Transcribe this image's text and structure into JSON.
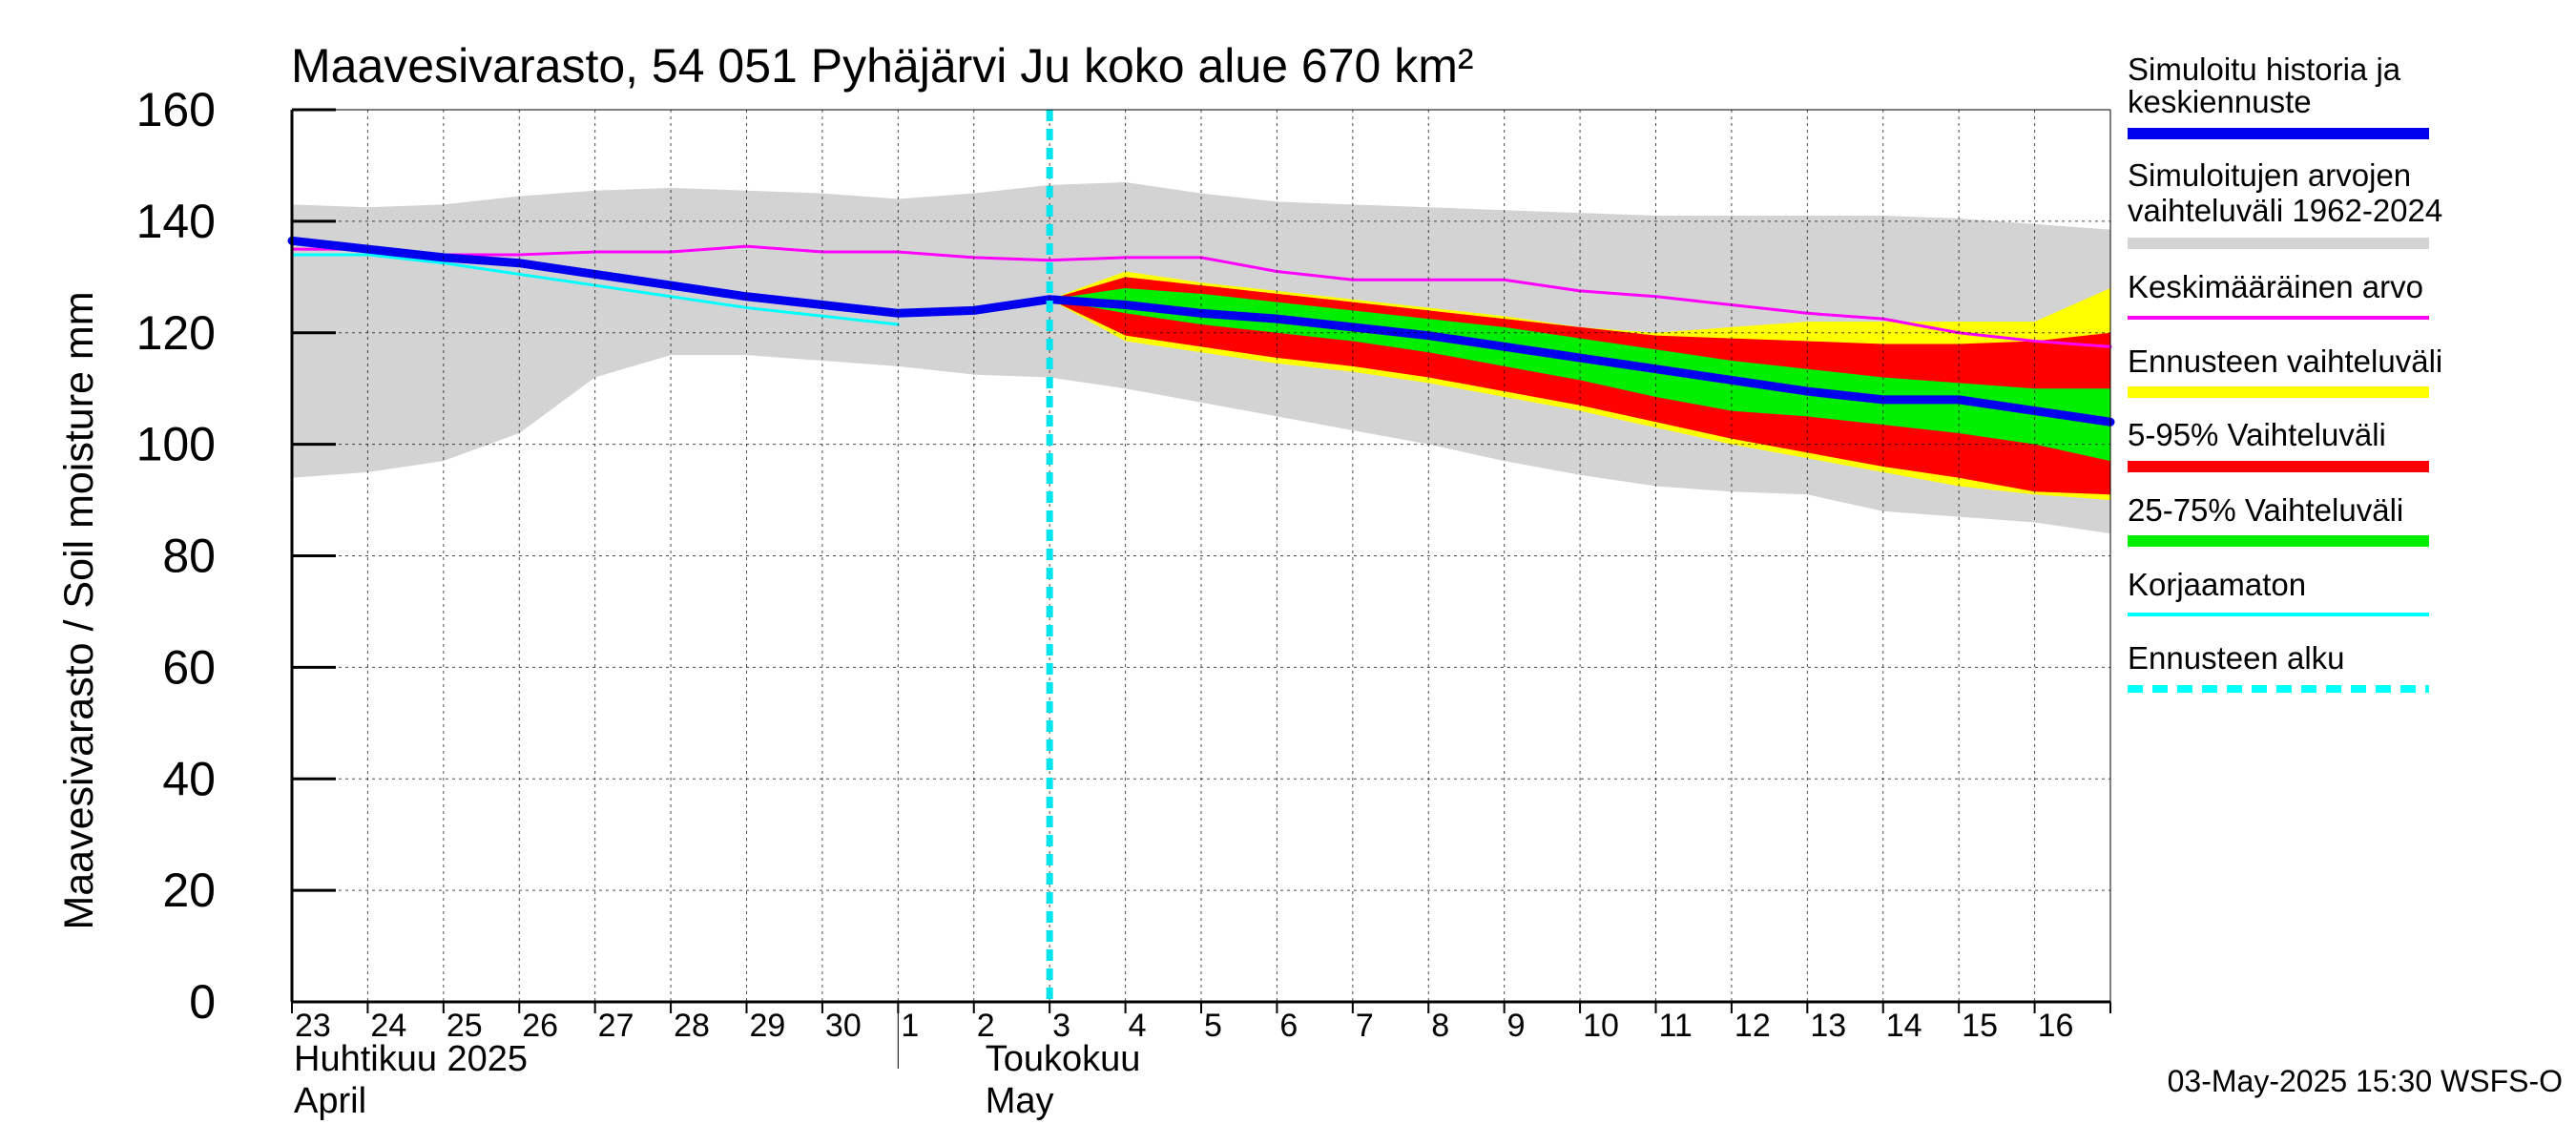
{
  "chart_data": {
    "type": "area",
    "title": "Maavesivarasto, 54 051 Pyhäjärvi Ju koko alue 670 km²",
    "ylabel": "Maavesivarasto / Soil moisture   mm",
    "ylim": [
      0,
      160
    ],
    "yticks": [
      0,
      20,
      40,
      60,
      80,
      100,
      120,
      140,
      160
    ],
    "xlim": [
      0,
      24
    ],
    "day_labels": [
      "23",
      "24",
      "25",
      "26",
      "27",
      "28",
      "29",
      "30",
      "1",
      "2",
      "3",
      "4",
      "5",
      "6",
      "7",
      "8",
      "9",
      "10",
      "11",
      "12",
      "13",
      "14",
      "15",
      "16"
    ],
    "month_labels": [
      {
        "line1": "Huhtikuu  2025",
        "line2": "April",
        "day_index": 0
      },
      {
        "line1": "Toukokuu",
        "line2": "May",
        "day_index": 9
      }
    ],
    "month_divider_day_index": 8,
    "forecast_start_x": 10,
    "timestamp": "03-May-2025 15:30 WSFS-O",
    "series": [
      {
        "name": "Simuloitujen arvojen vaihteluväli 1962-2024",
        "kind": "band",
        "color": "#d3d3d3",
        "x": [
          0,
          1,
          2,
          3,
          4,
          5,
          6,
          7,
          8,
          9,
          10,
          11,
          12,
          13,
          14,
          15,
          16,
          17,
          18,
          19,
          20,
          21,
          22,
          23,
          24
        ],
        "upper": [
          143,
          142.5,
          143,
          144.5,
          145.5,
          146,
          145.5,
          145,
          144,
          145,
          146.5,
          147,
          145,
          143.5,
          143,
          142.5,
          142,
          141.5,
          141,
          141,
          141,
          141,
          140.5,
          139.5,
          138.5
        ],
        "lower": [
          94,
          95,
          97,
          102,
          112,
          116,
          116,
          115,
          114,
          112.5,
          112,
          110,
          107.5,
          105,
          102.5,
          100,
          97,
          94.5,
          92.5,
          91.5,
          91,
          88,
          87,
          86,
          84
        ]
      },
      {
        "name": "Ennusteen vaihteluväli",
        "kind": "band",
        "color": "#ffff00",
        "x": [
          10,
          11,
          12,
          13,
          14,
          15,
          16,
          17,
          18,
          19,
          20,
          21,
          22,
          23,
          24
        ],
        "upper": [
          126,
          131,
          129,
          127.5,
          126,
          124.5,
          123,
          121,
          120,
          121,
          122,
          122,
          122,
          122,
          128
        ],
        "lower": [
          126,
          118.5,
          116.5,
          114.5,
          113,
          111,
          108.5,
          106,
          103,
          100,
          97.5,
          95,
          92.5,
          91,
          90
        ]
      },
      {
        "name": "5-95% Vaihteluväli",
        "kind": "band",
        "color": "#ff0000",
        "x": [
          10,
          11,
          12,
          13,
          14,
          15,
          16,
          17,
          18,
          19,
          20,
          21,
          22,
          23,
          24
        ],
        "upper": [
          126,
          130,
          128.5,
          127,
          125.5,
          124,
          122.5,
          121,
          119.5,
          119,
          118.5,
          118,
          118,
          118.5,
          120
        ],
        "lower": [
          126,
          119.5,
          117.5,
          115.5,
          114,
          112,
          109.5,
          107,
          104,
          101,
          98.5,
          96,
          94,
          91.5,
          91
        ]
      },
      {
        "name": "25-75% Vaihteluväli",
        "kind": "band",
        "color": "#00ee00",
        "x": [
          10,
          11,
          12,
          13,
          14,
          15,
          16,
          17,
          18,
          19,
          20,
          21,
          22,
          23,
          24
        ],
        "upper": [
          126,
          128,
          127,
          125.5,
          124,
          122.5,
          121,
          119,
          117,
          115,
          113.5,
          112,
          111,
          110,
          110
        ],
        "lower": [
          126,
          123.5,
          121.5,
          120,
          118.5,
          116.5,
          114,
          111.5,
          108.5,
          106,
          105,
          103.5,
          102,
          100,
          97
        ]
      },
      {
        "name": "Keskimääräinen arvo",
        "kind": "line",
        "color": "#ff00ff",
        "width": 3,
        "x": [
          0,
          1,
          2,
          3,
          4,
          5,
          6,
          7,
          8,
          9,
          10,
          11,
          12,
          13,
          14,
          15,
          16,
          17,
          18,
          19,
          20,
          21,
          22,
          23,
          24
        ],
        "y": [
          135,
          135,
          134,
          134,
          134.5,
          134.5,
          135.5,
          134.5,
          134.5,
          133.5,
          133,
          133.5,
          133.5,
          131,
          129.5,
          129.5,
          129.5,
          127.5,
          126.5,
          125,
          123.5,
          122.5,
          120,
          118.5,
          117.5
        ]
      },
      {
        "name": "Korjaamaton",
        "kind": "line",
        "color": "#00ffff",
        "width": 3,
        "x": [
          0,
          1,
          2,
          3,
          4,
          5,
          6,
          7,
          8
        ],
        "y": [
          134,
          134,
          132.5,
          130.5,
          128.5,
          126.5,
          124.5,
          123,
          121.5
        ]
      },
      {
        "name": "Simuloitu historia ja keskiennuste",
        "kind": "line",
        "color": "#0000ee",
        "width": 9,
        "x": [
          0,
          1,
          2,
          3,
          4,
          5,
          6,
          7,
          8,
          9,
          10,
          11,
          12,
          13,
          14,
          15,
          16,
          17,
          18,
          19,
          20,
          21,
          22,
          23,
          24
        ],
        "y": [
          136.5,
          135,
          133.5,
          132.5,
          130.5,
          128.5,
          126.5,
          125,
          123.5,
          124,
          126,
          125,
          123.5,
          122.5,
          121,
          119.5,
          117.5,
          115.5,
          113.5,
          111.5,
          109.5,
          108,
          108,
          106,
          104
        ]
      }
    ]
  },
  "legend": [
    {
      "line1": "Simuloitu historia ja",
      "line2": "keskiennuste",
      "color": "#0000ee",
      "style": "solid",
      "width": 12
    },
    {
      "line1": "Simuloitujen arvojen",
      "line2": "vaihteluväli 1962-2024",
      "color": "#d3d3d3",
      "style": "solid",
      "width": 12
    },
    {
      "line1": "Keskimääräinen arvo",
      "line2": "",
      "color": "#ff00ff",
      "style": "solid",
      "width": 4
    },
    {
      "line1": "Ennusteen vaihteluväli",
      "line2": "",
      "color": "#ffff00",
      "style": "solid",
      "width": 12
    },
    {
      "line1": "5-95% Vaihteluväli",
      "line2": "",
      "color": "#ff0000",
      "style": "solid",
      "width": 12
    },
    {
      "line1": "25-75% Vaihteluväli",
      "line2": "",
      "color": "#00ee00",
      "style": "solid",
      "width": 12
    },
    {
      "line1": "Korjaamaton",
      "line2": "",
      "color": "#00ffff",
      "style": "solid",
      "width": 4
    },
    {
      "line1": "Ennusteen alku",
      "line2": "",
      "color": "#00ffff",
      "style": "dashed",
      "width": 8
    }
  ]
}
